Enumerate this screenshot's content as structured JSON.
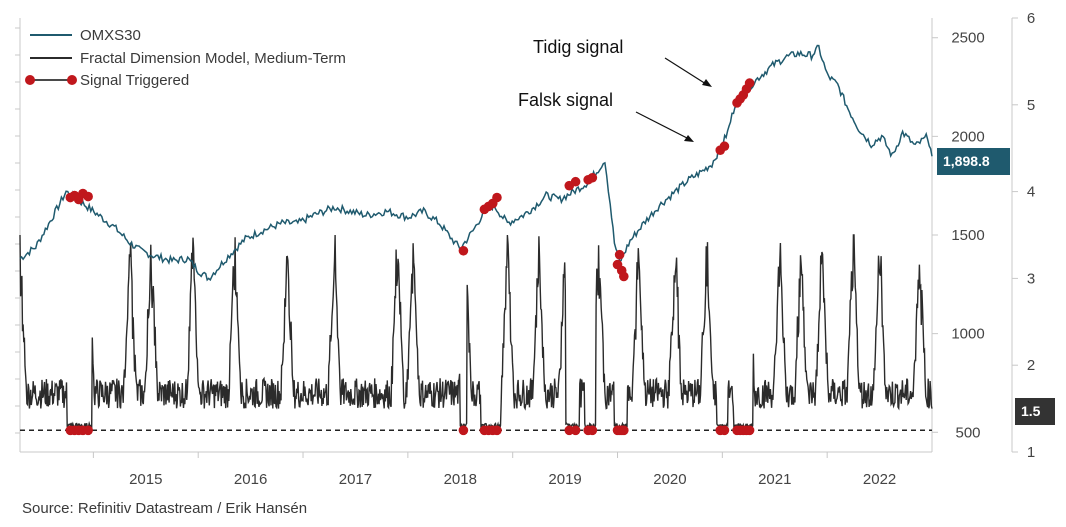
{
  "chart_data": {
    "type": "line",
    "source": "Source: Refinitiv Datastream / Erik Hansén",
    "legend": {
      "placement": "top-left",
      "items": [
        {
          "label": "OMXS30",
          "color": "#1f5a6e",
          "kind": "line"
        },
        {
          "label": "Fractal Dimension Model, Medium-Term",
          "color": "#2b2b2b",
          "kind": "line"
        },
        {
          "label": "Signal Triggered",
          "color": "#c0171c",
          "kind": "marker-line"
        }
      ]
    },
    "x": {
      "tick_labels": [
        "2015",
        "2016",
        "2017",
        "2018",
        "2019",
        "2020",
        "2021",
        "2022"
      ],
      "range": [
        2014.3,
        2023.0
      ]
    },
    "y_left": {
      "ticks": [
        "500",
        "1000",
        "1500",
        "2000",
        "2500"
      ],
      "range": [
        400,
        2600
      ]
    },
    "y_right": {
      "ticks": [
        "1",
        "2",
        "3",
        "4",
        "5",
        "6"
      ],
      "range": [
        1,
        6
      ]
    },
    "threshold": {
      "value": 1.25,
      "style": "dashed"
    },
    "omx_series": {
      "name": "OMXS30",
      "points": [
        [
          2014.3,
          1380
        ],
        [
          2014.45,
          1440
        ],
        [
          2014.62,
          1600
        ],
        [
          2014.68,
          1660
        ],
        [
          2014.74,
          1720
        ],
        [
          2014.9,
          1660
        ],
        [
          2015.05,
          1600
        ],
        [
          2015.2,
          1540
        ],
        [
          2015.35,
          1460
        ],
        [
          2015.45,
          1420
        ],
        [
          2015.6,
          1390
        ],
        [
          2015.75,
          1370
        ],
        [
          2015.9,
          1380
        ],
        [
          2016.0,
          1320
        ],
        [
          2016.1,
          1280
        ],
        [
          2016.3,
          1400
        ],
        [
          2016.45,
          1480
        ],
        [
          2016.6,
          1520
        ],
        [
          2016.8,
          1560
        ],
        [
          2016.95,
          1560
        ],
        [
          2017.1,
          1600
        ],
        [
          2017.3,
          1640
        ],
        [
          2017.45,
          1620
        ],
        [
          2017.6,
          1600
        ],
        [
          2017.8,
          1620
        ],
        [
          2018.0,
          1590
        ],
        [
          2018.15,
          1620
        ],
        [
          2018.3,
          1560
        ],
        [
          2018.42,
          1480
        ],
        [
          2018.5,
          1430
        ],
        [
          2018.62,
          1520
        ],
        [
          2018.72,
          1610
        ],
        [
          2018.82,
          1650
        ],
        [
          2018.95,
          1560
        ],
        [
          2019.1,
          1600
        ],
        [
          2019.2,
          1640
        ],
        [
          2019.32,
          1700
        ],
        [
          2019.45,
          1680
        ],
        [
          2019.58,
          1720
        ],
        [
          2019.7,
          1760
        ],
        [
          2019.8,
          1820
        ],
        [
          2019.88,
          1880
        ],
        [
          2019.93,
          1660
        ],
        [
          2019.97,
          1460
        ],
        [
          2020.02,
          1360
        ],
        [
          2020.12,
          1470
        ],
        [
          2020.25,
          1560
        ],
        [
          2020.4,
          1650
        ],
        [
          2020.55,
          1720
        ],
        [
          2020.68,
          1780
        ],
        [
          2020.8,
          1820
        ],
        [
          2020.9,
          1860
        ],
        [
          2020.98,
          1940
        ],
        [
          2021.05,
          2020
        ],
        [
          2021.12,
          2160
        ],
        [
          2021.2,
          2220
        ],
        [
          2021.35,
          2300
        ],
        [
          2021.48,
          2360
        ],
        [
          2021.6,
          2400
        ],
        [
          2021.72,
          2420
        ],
        [
          2021.85,
          2410
        ],
        [
          2021.92,
          2450
        ],
        [
          2022.0,
          2310
        ],
        [
          2022.1,
          2260
        ],
        [
          2022.2,
          2140
        ],
        [
          2022.3,
          2040
        ],
        [
          2022.42,
          1960
        ],
        [
          2022.52,
          2000
        ],
        [
          2022.62,
          1900
        ],
        [
          2022.72,
          2020
        ],
        [
          2022.84,
          1950
        ],
        [
          2022.96,
          2000
        ],
        [
          2023.0,
          1898.8
        ]
      ],
      "last_value_label": "1,898.8"
    },
    "fd_series": {
      "name": "Fractal Dimension Model, Medium-Term",
      "last_value_label": "1.5"
    },
    "signals": [
      [
        2014.78,
        1690
      ],
      [
        2014.82,
        1700
      ],
      [
        2014.86,
        1680
      ],
      [
        2014.9,
        1710
      ],
      [
        2014.95,
        1695
      ],
      [
        2018.53,
        1420
      ],
      [
        2018.73,
        1630
      ],
      [
        2018.77,
        1645
      ],
      [
        2018.81,
        1660
      ],
      [
        2018.85,
        1690
      ],
      [
        2019.54,
        1750
      ],
      [
        2019.6,
        1770
      ],
      [
        2019.72,
        1780
      ],
      [
        2019.76,
        1790
      ],
      [
        2020.0,
        1350
      ],
      [
        2020.02,
        1400
      ],
      [
        2020.04,
        1320
      ],
      [
        2020.06,
        1290
      ],
      [
        2020.98,
        1930
      ],
      [
        2021.02,
        1950
      ],
      [
        2021.14,
        2170
      ],
      [
        2021.17,
        2190
      ],
      [
        2021.2,
        2210
      ],
      [
        2021.23,
        2240
      ],
      [
        2021.26,
        2270
      ]
    ],
    "annotations": [
      {
        "text": "Tidig signal",
        "target": [
          2021.22,
          2240
        ]
      },
      {
        "text": "Falsk signal",
        "target": [
          2020.96,
          1940
        ]
      }
    ]
  }
}
